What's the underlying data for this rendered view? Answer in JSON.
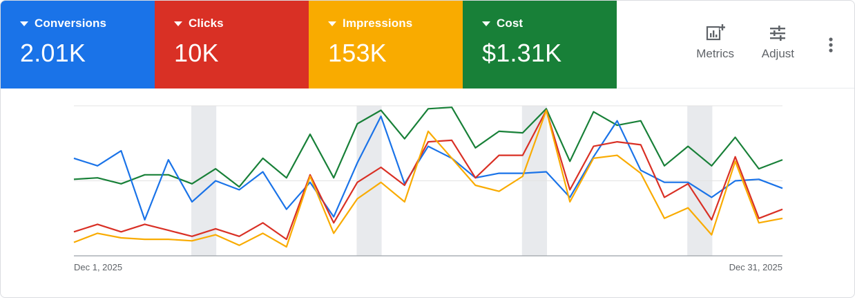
{
  "tiles": [
    {
      "label": "Conversions",
      "value": "2.01K",
      "color": "#1a73e8"
    },
    {
      "label": "Clicks",
      "value": "10K",
      "color": "#d93025"
    },
    {
      "label": "Impressions",
      "value": "153K",
      "color": "#f9ab00"
    },
    {
      "label": "Cost",
      "value": "$1.31K",
      "color": "#188038"
    }
  ],
  "toolbar": {
    "metrics_label": "Metrics",
    "adjust_label": "Adjust"
  },
  "chart_data": {
    "type": "line",
    "x_start_label": "Dec 1, 2025",
    "x_end_label": "Dec 31, 2025",
    "x": [
      1,
      2,
      3,
      4,
      5,
      6,
      7,
      8,
      9,
      10,
      11,
      12,
      13,
      14,
      15,
      16,
      17,
      18,
      19,
      20,
      21,
      22,
      23,
      24,
      25,
      26,
      27,
      28,
      29,
      30,
      31
    ],
    "x_range_note": "",
    "shaded_days": [
      [
        6,
        7
      ],
      [
        13,
        14
      ],
      [
        20,
        21
      ],
      [
        27,
        28
      ]
    ],
    "grid": true,
    "ylim": [
      0,
      100
    ],
    "series": [
      {
        "color": "#188038",
        "values": [
          51,
          52,
          48,
          54,
          54,
          48,
          58,
          46,
          65,
          52,
          81,
          52,
          88,
          97,
          78,
          98,
          99,
          72,
          83,
          82,
          98,
          63,
          96,
          87,
          90,
          60,
          73,
          60,
          79,
          58,
          64
        ]
      },
      {
        "color": "#1a73e8",
        "values": [
          65,
          60,
          70,
          24,
          64,
          36,
          50,
          44,
          56,
          31,
          49,
          26,
          62,
          93,
          48,
          73,
          65,
          52,
          55,
          55,
          56,
          39,
          66,
          90,
          57,
          49,
          49,
          39,
          50,
          51,
          45
        ]
      },
      {
        "color": "#d93025",
        "values": [
          16,
          21,
          16,
          21,
          17,
          13,
          18,
          13,
          22,
          11,
          54,
          22,
          49,
          59,
          47,
          76,
          77,
          52,
          67,
          67,
          97,
          44,
          73,
          76,
          74,
          39,
          48,
          24,
          66,
          25,
          31
        ]
      },
      {
        "color": "#f9ab00",
        "values": [
          9,
          15,
          12,
          11,
          11,
          10,
          14,
          7,
          15,
          6,
          53,
          15,
          38,
          49,
          36,
          83,
          65,
          47,
          43,
          53,
          97,
          36,
          65,
          67,
          55,
          25,
          32,
          14,
          63,
          22,
          25
        ]
      }
    ]
  }
}
